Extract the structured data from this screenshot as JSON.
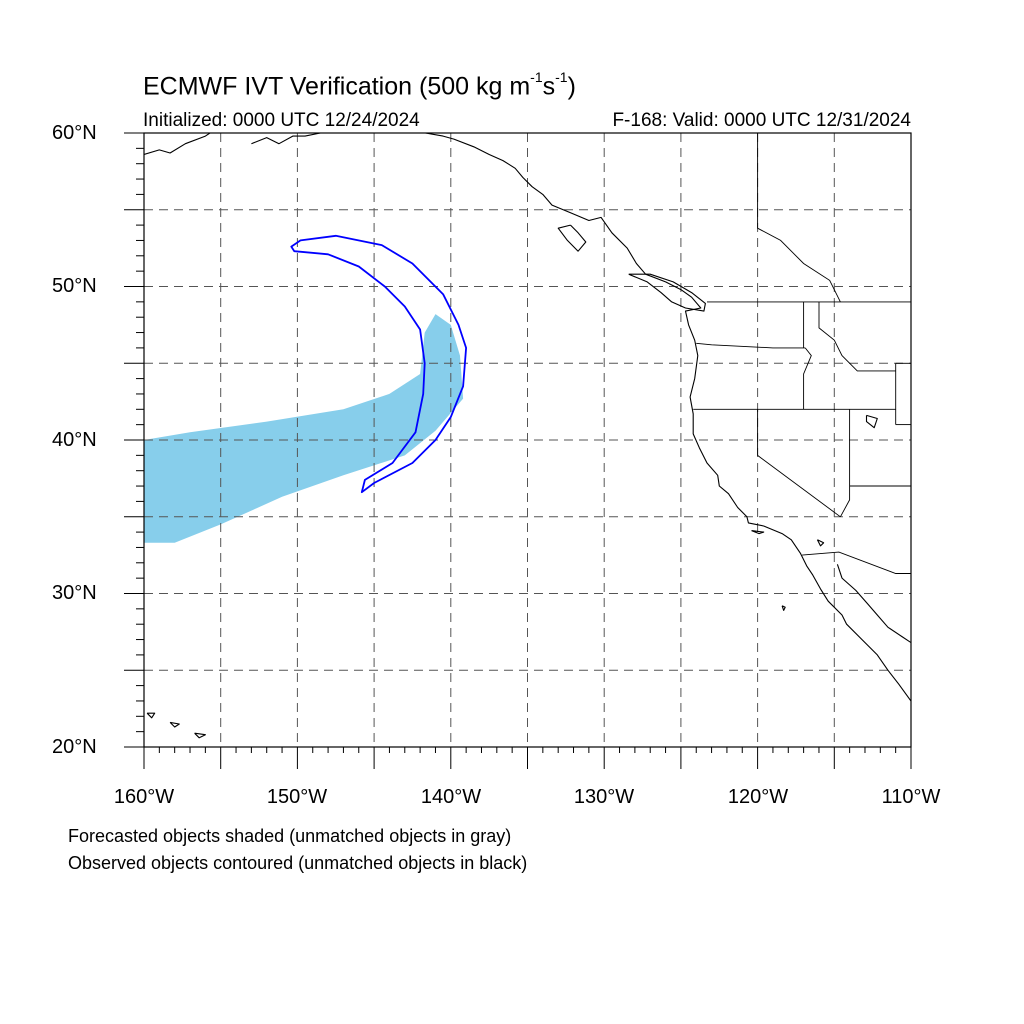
{
  "title": {
    "main": "ECMWF IVT Verification (500 kg m",
    "exp1": "-1",
    "mid": "s",
    "exp2": "-1",
    "end": ")"
  },
  "subtitle": {
    "left": "Initialized: 0000 UTC 12/24/2024",
    "right": "F-168: Valid: 0000 UTC 12/31/2024"
  },
  "axes": {
    "lat_labels": [
      "60°N",
      "50°N",
      "40°N",
      "30°N",
      "20°N"
    ],
    "lon_labels": [
      "160°W",
      "150°W",
      "140°W",
      "130°W",
      "120°W",
      "110°W"
    ],
    "lat_range": [
      20,
      60
    ],
    "lon_range": [
      -160,
      -110
    ],
    "gridline_spacing_deg": 5,
    "grid": "dashed"
  },
  "notes": {
    "line1": "Forecasted objects shaded (unmatched objects in gray)",
    "line2": "Observed objects contoured (unmatched objects in black)"
  },
  "colors": {
    "forecast_fill": "#87ceeb",
    "observed_contour": "#0000ff",
    "coastline": "#000000",
    "grid": "#555555"
  },
  "objects": {
    "forecast_object": {
      "status": "matched",
      "polygon_lonlat": [
        [
          -160.0,
          40.0
        ],
        [
          -157.0,
          40.5
        ],
        [
          -152.0,
          41.2
        ],
        [
          -147.0,
          42.0
        ],
        [
          -144.0,
          43.0
        ],
        [
          -142.0,
          44.3
        ],
        [
          -141.7,
          47.0
        ],
        [
          -141.0,
          48.2
        ],
        [
          -140.0,
          47.5
        ],
        [
          -139.4,
          45.5
        ],
        [
          -139.2,
          42.7
        ],
        [
          -141.0,
          40.6
        ],
        [
          -143.0,
          39.0
        ],
        [
          -147.0,
          37.7
        ],
        [
          -151.0,
          36.3
        ],
        [
          -155.0,
          34.5
        ],
        [
          -158.0,
          33.3
        ],
        [
          -160.0,
          33.3
        ]
      ]
    },
    "observed_object": {
      "status": "matched",
      "polygon_lonlat": [
        [
          -150.4,
          52.6
        ],
        [
          -149.8,
          53.0
        ],
        [
          -147.5,
          53.3
        ],
        [
          -144.5,
          52.7
        ],
        [
          -142.5,
          51.5
        ],
        [
          -140.5,
          49.5
        ],
        [
          -139.5,
          47.5
        ],
        [
          -139.0,
          46.0
        ],
        [
          -139.2,
          43.5
        ],
        [
          -140.0,
          41.5
        ],
        [
          -141.0,
          40.0
        ],
        [
          -142.5,
          38.5
        ],
        [
          -145.0,
          37.2
        ],
        [
          -145.8,
          36.6
        ],
        [
          -145.6,
          37.4
        ],
        [
          -143.8,
          38.5
        ],
        [
          -142.3,
          40.5
        ],
        [
          -141.8,
          43.0
        ],
        [
          -141.7,
          45.0
        ],
        [
          -142.0,
          47.2
        ],
        [
          -143.0,
          48.7
        ],
        [
          -144.3,
          50.0
        ],
        [
          -146.0,
          51.3
        ],
        [
          -148.0,
          52.1
        ],
        [
          -150.2,
          52.3
        ]
      ]
    }
  },
  "coastlines": {
    "alaska_south": [
      [
        -160.0,
        58.6
      ],
      [
        -159.0,
        58.9
      ],
      [
        -158.3,
        58.7
      ],
      [
        -157.3,
        59.3
      ],
      [
        -156.0,
        59.8
      ],
      [
        -154.8,
        60.6
      ],
      [
        -154.0,
        61.0
      ]
    ],
    "kenai": [
      [
        -153.0,
        59.3
      ],
      [
        -152.0,
        59.7
      ],
      [
        -151.2,
        59.3
      ],
      [
        -150.3,
        59.8
      ],
      [
        -149.5,
        59.8
      ],
      [
        -148.5,
        60.0
      ],
      [
        -147.4,
        60.6
      ],
      [
        -146.3,
        60.8
      ],
      [
        -145.5,
        60.6
      ],
      [
        -144.2,
        60.2
      ],
      [
        -142.2,
        60.1
      ]
    ],
    "gulf_alaska_east": [
      [
        -142.2,
        60.1
      ],
      [
        -140.5,
        59.8
      ],
      [
        -139.8,
        59.6
      ],
      [
        -138.5,
        59.1
      ],
      [
        -137.5,
        58.6
      ],
      [
        -136.6,
        58.2
      ],
      [
        -135.8,
        57.7
      ],
      [
        -135.3,
        57.1
      ],
      [
        -134.7,
        56.5
      ],
      [
        -134.0,
        56.0
      ],
      [
        -133.4,
        55.3
      ],
      [
        -132.2,
        54.8
      ],
      [
        -131.0,
        54.3
      ],
      [
        -130.2,
        54.5
      ],
      [
        -129.5,
        53.5
      ],
      [
        -128.5,
        52.5
      ],
      [
        -127.9,
        51.5
      ],
      [
        -127.3,
        50.8
      ],
      [
        -126.0,
        50.3
      ],
      [
        -125.0,
        49.8
      ],
      [
        -124.3,
        49.3
      ],
      [
        -123.7,
        48.6
      ],
      [
        -124.7,
        48.4
      ],
      [
        -124.5,
        47.5
      ],
      [
        -124.1,
        46.5
      ],
      [
        -123.9,
        45.5
      ],
      [
        -124.1,
        44.0
      ],
      [
        -124.4,
        42.8
      ],
      [
        -124.2,
        41.7
      ],
      [
        -124.2,
        40.4
      ],
      [
        -123.8,
        39.5
      ],
      [
        -123.3,
        38.5
      ],
      [
        -122.6,
        37.7
      ],
      [
        -122.5,
        37.0
      ],
      [
        -121.9,
        36.5
      ],
      [
        -121.3,
        35.6
      ],
      [
        -120.7,
        35.0
      ],
      [
        -120.6,
        34.6
      ],
      [
        -119.6,
        34.4
      ],
      [
        -118.4,
        33.9
      ],
      [
        -117.8,
        33.5
      ],
      [
        -117.2,
        32.6
      ],
      [
        -116.8,
        31.8
      ],
      [
        -116.4,
        31.2
      ],
      [
        -115.9,
        30.3
      ],
      [
        -115.4,
        29.5
      ],
      [
        -114.5,
        28.6
      ],
      [
        -114.2,
        28.0
      ],
      [
        -113.2,
        27.0
      ],
      [
        -112.2,
        26.0
      ],
      [
        -111.5,
        25.0
      ],
      [
        -110.8,
        24.1
      ],
      [
        -110.0,
        23.0
      ]
    ],
    "gulf_california": [
      [
        -114.8,
        31.9
      ],
      [
        -114.5,
        31.0
      ],
      [
        -113.6,
        30.2
      ],
      [
        -112.8,
        29.3
      ],
      [
        -112.2,
        28.6
      ],
      [
        -111.5,
        27.8
      ],
      [
        -110.6,
        27.2
      ],
      [
        -110.0,
        26.8
      ]
    ],
    "vancouver_island": [
      [
        -128.4,
        50.8
      ],
      [
        -127.2,
        50.3
      ],
      [
        -126.3,
        49.6
      ],
      [
        -125.6,
        49.0
      ],
      [
        -124.7,
        48.6
      ],
      [
        -123.5,
        48.4
      ],
      [
        -123.4,
        48.9
      ],
      [
        -124.3,
        49.6
      ],
      [
        -125.5,
        50.3
      ],
      [
        -127.0,
        50.8
      ],
      [
        -128.4,
        50.8
      ]
    ],
    "haida_gwaii": [
      [
        -132.2,
        54.0
      ],
      [
        -131.7,
        53.5
      ],
      [
        -131.2,
        52.9
      ],
      [
        -131.7,
        52.3
      ],
      [
        -132.4,
        53.0
      ],
      [
        -133.0,
        53.8
      ],
      [
        -132.2,
        54.0
      ]
    ],
    "hawaii_island": [
      [
        -155.9,
        19.9
      ],
      [
        -155.1,
        19.9
      ],
      [
        -155.6,
        19.6
      ],
      [
        -155.9,
        19.9
      ]
    ],
    "maui": [
      [
        -156.7,
        20.9
      ],
      [
        -156.0,
        20.8
      ],
      [
        -156.4,
        20.6
      ],
      [
        -156.7,
        20.9
      ]
    ],
    "oahu": [
      [
        -158.3,
        21.6
      ],
      [
        -157.7,
        21.5
      ],
      [
        -158.0,
        21.3
      ],
      [
        -158.3,
        21.6
      ]
    ],
    "kauai": [
      [
        -159.8,
        22.2
      ],
      [
        -159.3,
        22.2
      ],
      [
        -159.5,
        21.9
      ],
      [
        -159.8,
        22.2
      ]
    ],
    "great_salt_lake": [
      [
        -112.9,
        41.6
      ],
      [
        -112.2,
        41.4
      ],
      [
        -112.4,
        40.8
      ],
      [
        -112.9,
        41.2
      ],
      [
        -112.9,
        41.6
      ]
    ],
    "channel_islands": [
      [
        -120.4,
        34.1
      ],
      [
        -119.6,
        34.0
      ],
      [
        -119.9,
        33.9
      ],
      [
        -120.4,
        34.1
      ]
    ],
    "guadalupe": [
      [
        -118.4,
        29.2
      ],
      [
        -118.2,
        29.1
      ],
      [
        -118.3,
        28.9
      ],
      [
        -118.4,
        29.2
      ]
    ],
    "salton_sea": [
      [
        -116.1,
        33.5
      ],
      [
        -115.7,
        33.3
      ],
      [
        -115.9,
        33.1
      ],
      [
        -116.1,
        33.5
      ]
    ]
  },
  "borders": {
    "us_canada": [
      [
        -123.3,
        49.0
      ],
      [
        -110.0,
        49.0
      ]
    ],
    "bc_ab": [
      [
        -120.0,
        60.0
      ],
      [
        -120.0,
        53.8
      ],
      [
        -118.5,
        53.0
      ],
      [
        -117.0,
        51.5
      ],
      [
        -115.3,
        50.4
      ],
      [
        -114.6,
        49.0
      ]
    ],
    "wa_or": [
      [
        -124.0,
        46.3
      ],
      [
        -123.0,
        46.2
      ],
      [
        -119.0,
        46.0
      ],
      [
        -116.9,
        46.0
      ]
    ],
    "wa_id": [
      [
        -117.0,
        49.0
      ],
      [
        -117.0,
        46.0
      ]
    ],
    "or_id": [
      [
        -116.9,
        46.0
      ],
      [
        -116.5,
        45.5
      ],
      [
        -117.0,
        44.3
      ],
      [
        -117.0,
        42.0
      ]
    ],
    "or_ca_nv": [
      [
        -124.2,
        42.0
      ],
      [
        -111.0,
        42.0
      ]
    ],
    "ca_nv": [
      [
        -120.0,
        42.0
      ],
      [
        -120.0,
        39.0
      ],
      [
        -114.6,
        35.0
      ]
    ],
    "nv_ut": [
      [
        -114.0,
        42.0
      ],
      [
        -114.0,
        37.0
      ]
    ],
    "nv_az": [
      [
        -114.0,
        37.0
      ],
      [
        -114.0,
        36.1
      ],
      [
        -114.6,
        35.0
      ]
    ],
    "id_mt": [
      [
        -116.0,
        49.0
      ],
      [
        -116.0,
        47.3
      ],
      [
        -115.0,
        46.5
      ],
      [
        -114.5,
        45.5
      ],
      [
        -113.5,
        44.5
      ],
      [
        -111.0,
        44.5
      ]
    ],
    "ut_az": [
      [
        -114.0,
        37.0
      ],
      [
        -110.0,
        37.0
      ]
    ],
    "wy_west": [
      [
        -111.0,
        45.0
      ],
      [
        -111.0,
        41.0
      ]
    ],
    "wy_north": [
      [
        -111.0,
        45.0
      ],
      [
        -110.0,
        45.0
      ]
    ],
    "wy_south": [
      [
        -111.0,
        41.0
      ],
      [
        -110.0,
        41.0
      ]
    ],
    "us_mexico": [
      [
        -117.1,
        32.5
      ],
      [
        -114.7,
        32.7
      ],
      [
        -111.0,
        31.3
      ],
      [
        -110.0,
        31.3
      ]
    ]
  }
}
